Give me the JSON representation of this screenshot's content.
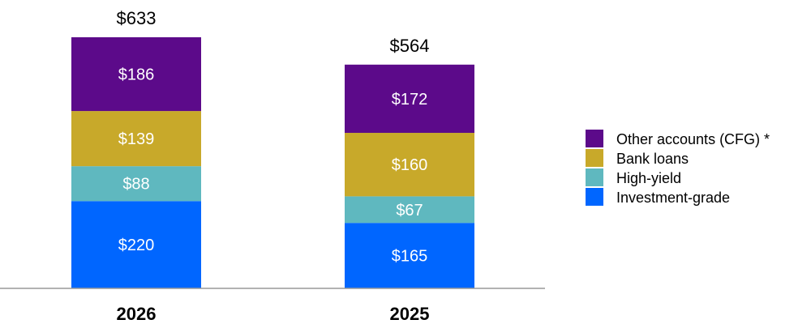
{
  "chart_data": {
    "type": "bar",
    "stacked": true,
    "categories": [
      "2026",
      "2025"
    ],
    "totals": [
      633,
      564
    ],
    "total_labels": [
      "$633",
      "$564"
    ],
    "series": [
      {
        "name": "Investment-grade",
        "color": "#0066ff",
        "values": [
          220,
          165
        ],
        "labels": [
          "$220",
          "$165"
        ]
      },
      {
        "name": "High-yield",
        "color": "#5fb8bf",
        "values": [
          88,
          67
        ],
        "labels": [
          "$88",
          "$67"
        ]
      },
      {
        "name": "Bank loans",
        "color": "#c8a92a",
        "values": [
          139,
          160
        ],
        "labels": [
          "$139",
          "$160"
        ]
      },
      {
        "name": "Other accounts (CFG) *",
        "color": "#5c0a8a",
        "values": [
          186,
          172
        ],
        "labels": [
          "$186",
          "$172"
        ]
      }
    ],
    "legend_order": [
      "Other accounts (CFG) *",
      "Bank loans",
      "High-yield",
      "Investment-grade"
    ],
    "legend_position": "right",
    "grid": false,
    "axis_color": "#999999"
  }
}
